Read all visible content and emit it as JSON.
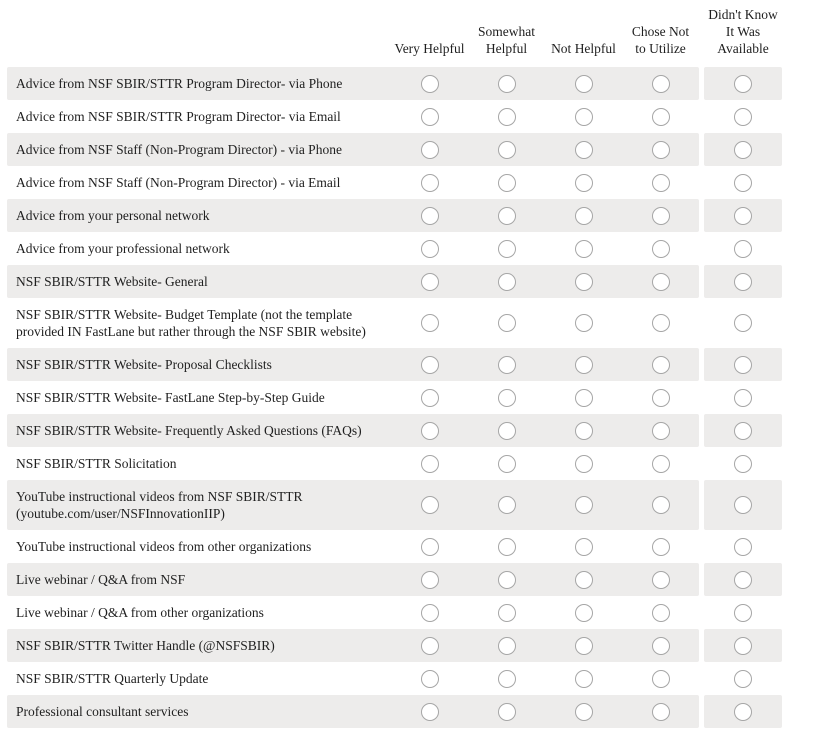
{
  "colors": {
    "band_background": "#edeceb",
    "radio_border": "#a6a6a6",
    "text": "#1f1f1f"
  },
  "table": {
    "columns": [
      {
        "key": "very-helpful",
        "label": "Very Helpful"
      },
      {
        "key": "somewhat-helpful",
        "label": "Somewhat\nHelpful"
      },
      {
        "key": "not-helpful",
        "label": "Not Helpful"
      },
      {
        "key": "chose-not-to-utilize",
        "label": "Chose Not\nto Utilize"
      },
      {
        "key": "didnt-know-available",
        "label": "Didn't Know\nIt Was\nAvailable"
      }
    ],
    "rows": [
      {
        "label": "Advice from NSF SBIR/STTR Program Director- via Phone"
      },
      {
        "label": "Advice from NSF SBIR/STTR Program Director- via Email"
      },
      {
        "label": "Advice from NSF Staff (Non-Program Director) - via Phone"
      },
      {
        "label": "Advice from NSF Staff (Non-Program Director) - via Email"
      },
      {
        "label": "Advice from your personal network"
      },
      {
        "label": "Advice from your professional network"
      },
      {
        "label": "NSF SBIR/STTR Website- General"
      },
      {
        "label": "NSF SBIR/STTR Website- Budget Template (not the template\nprovided IN FastLane but rather through the NSF SBIR website)"
      },
      {
        "label": "NSF SBIR/STTR Website- Proposal Checklists"
      },
      {
        "label": "NSF SBIR/STTR Website- FastLane Step-by-Step Guide"
      },
      {
        "label": "NSF SBIR/STTR Website- Frequently Asked Questions (FAQs)"
      },
      {
        "label": "NSF SBIR/STTR Solicitation"
      },
      {
        "label": "YouTube instructional videos from NSF SBIR/STTR\n(youtube.com/user/NSFInnovationIIP)"
      },
      {
        "label": "YouTube instructional videos from other organizations"
      },
      {
        "label": "Live webinar / Q&A from NSF"
      },
      {
        "label": "Live webinar / Q&A from other organizations"
      },
      {
        "label": "NSF SBIR/STTR Twitter Handle (@NSFSBIR)"
      },
      {
        "label": "NSF SBIR/STTR Quarterly Update"
      },
      {
        "label": "Professional consultant services"
      }
    ]
  }
}
